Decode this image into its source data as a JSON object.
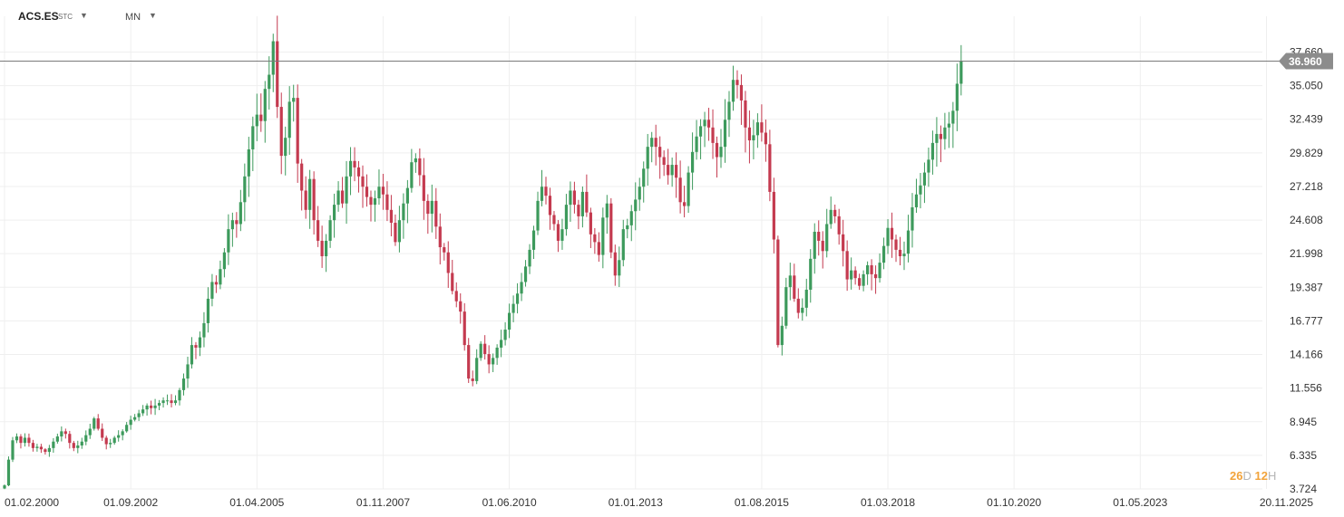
{
  "toolbar": {
    "symbol": "ACS.ES",
    "symbol_type": "STC",
    "interval": "MN"
  },
  "countdown": {
    "days": "26",
    "days_unit": "D",
    "hours": "12",
    "hours_unit": "H"
  },
  "colors": {
    "up": "#3d9a5c",
    "down": "#c43a4f",
    "price_line": "#7a7a7a",
    "price_label_bg": "#8c8c8c",
    "grid": "#efefef"
  },
  "chart_data": {
    "type": "candlestick",
    "instrument": "ACS.ES",
    "timeframe": "MN",
    "last_price": "36.960",
    "last_price_value": 36.96,
    "y_ticks": [
      3.724,
      6.335,
      8.945,
      11.556,
      14.166,
      16.777,
      19.387,
      21.998,
      24.608,
      27.218,
      29.829,
      32.439,
      35.05,
      37.66
    ],
    "y_tick_labels": [
      "3.724",
      "6.335",
      "8.945",
      "11.556",
      "14.166",
      "16.777",
      "19.387",
      "21.998",
      "24.608",
      "27.218",
      "29.829",
      "32.439",
      "35.050",
      "37.660"
    ],
    "ylim": [
      3.724,
      40.0
    ],
    "x_tick_labels": [
      "01.02.2000",
      "01.09.2002",
      "01.04.2005",
      "01.11.2007",
      "01.06.2010",
      "01.01.2013",
      "01.08.2015",
      "01.03.2018",
      "01.10.2020",
      "01.05.2023",
      "20.11.2025"
    ],
    "grid": true,
    "start_month": "2000-02",
    "monthly_close": [
      4.0,
      6.0,
      7.5,
      7.8,
      7.3,
      7.7,
      7.3,
      6.9,
      7.0,
      6.8,
      6.6,
      6.9,
      7.4,
      7.8,
      8.2,
      8.0,
      7.3,
      6.9,
      7.1,
      7.4,
      7.9,
      8.4,
      9.2,
      8.4,
      7.7,
      7.2,
      7.3,
      7.7,
      7.9,
      8.2,
      8.7,
      9.1,
      9.3,
      9.6,
      9.9,
      10.2,
      10.0,
      10.2,
      10.4,
      10.6,
      10.6,
      10.4,
      10.6,
      11.4,
      12.3,
      13.4,
      14.9,
      14.7,
      15.5,
      16.6,
      18.5,
      19.8,
      19.6,
      20.8,
      22.1,
      23.9,
      24.6,
      24.3,
      26.0,
      28.0,
      30.1,
      31.9,
      32.8,
      32.3,
      34.8,
      35.9,
      38.5,
      33.4,
      29.6,
      31.0,
      33.8,
      34.1,
      29.0,
      26.9,
      25.4,
      27.8,
      24.6,
      23.0,
      21.8,
      23.0,
      24.6,
      25.8,
      26.9,
      25.9,
      28.0,
      29.2,
      28.7,
      28.0,
      27.2,
      26.4,
      25.8,
      26.3,
      27.2,
      26.6,
      25.4,
      24.4,
      22.9,
      24.6,
      25.9,
      27.1,
      29.1,
      29.4,
      28.1,
      26.1,
      25.1,
      26.1,
      24.1,
      22.5,
      22.1,
      20.5,
      19.1,
      18.3,
      17.5,
      14.9,
      12.3,
      12.1,
      13.9,
      15.0,
      14.2,
      13.4,
      13.9,
      14.7,
      15.3,
      16.1,
      17.4,
      18.1,
      18.9,
      19.8,
      21.0,
      22.3,
      23.8,
      26.1,
      27.2,
      26.5,
      25.0,
      24.3,
      23.0,
      23.9,
      25.8,
      26.9,
      25.8,
      24.9,
      26.8,
      25.2,
      23.5,
      22.9,
      21.9,
      24.8,
      25.9,
      22.1,
      20.3,
      21.5,
      23.9,
      24.2,
      25.3,
      26.2,
      27.2,
      28.6,
      30.3,
      31.0,
      30.3,
      29.5,
      28.9,
      28.1,
      28.9,
      27.9,
      26.0,
      25.7,
      28.3,
      29.9,
      31.1,
      31.9,
      32.4,
      31.8,
      30.6,
      29.5,
      30.3,
      32.4,
      33.8,
      35.5,
      35.1,
      33.9,
      31.8,
      30.8,
      31.2,
      32.2,
      31.4,
      30.5,
      26.8,
      23.1,
      14.9,
      16.4,
      19.4,
      20.3,
      18.5,
      17.4,
      17.8,
      19.2,
      21.6,
      23.7,
      23.0,
      22.2,
      24.3,
      25.4,
      24.9,
      23.5,
      22.2,
      20.0,
      20.7,
      20.1,
      19.5,
      20.4,
      21.1,
      20.4,
      20.1,
      21.3,
      22.6,
      24.0,
      23.1,
      22.3,
      21.8,
      22.0,
      23.8,
      25.6,
      26.6,
      27.3,
      28.3,
      29.3,
      30.6,
      31.3,
      30.9,
      31.8,
      32.1,
      33.1,
      35.2,
      36.96
    ]
  }
}
